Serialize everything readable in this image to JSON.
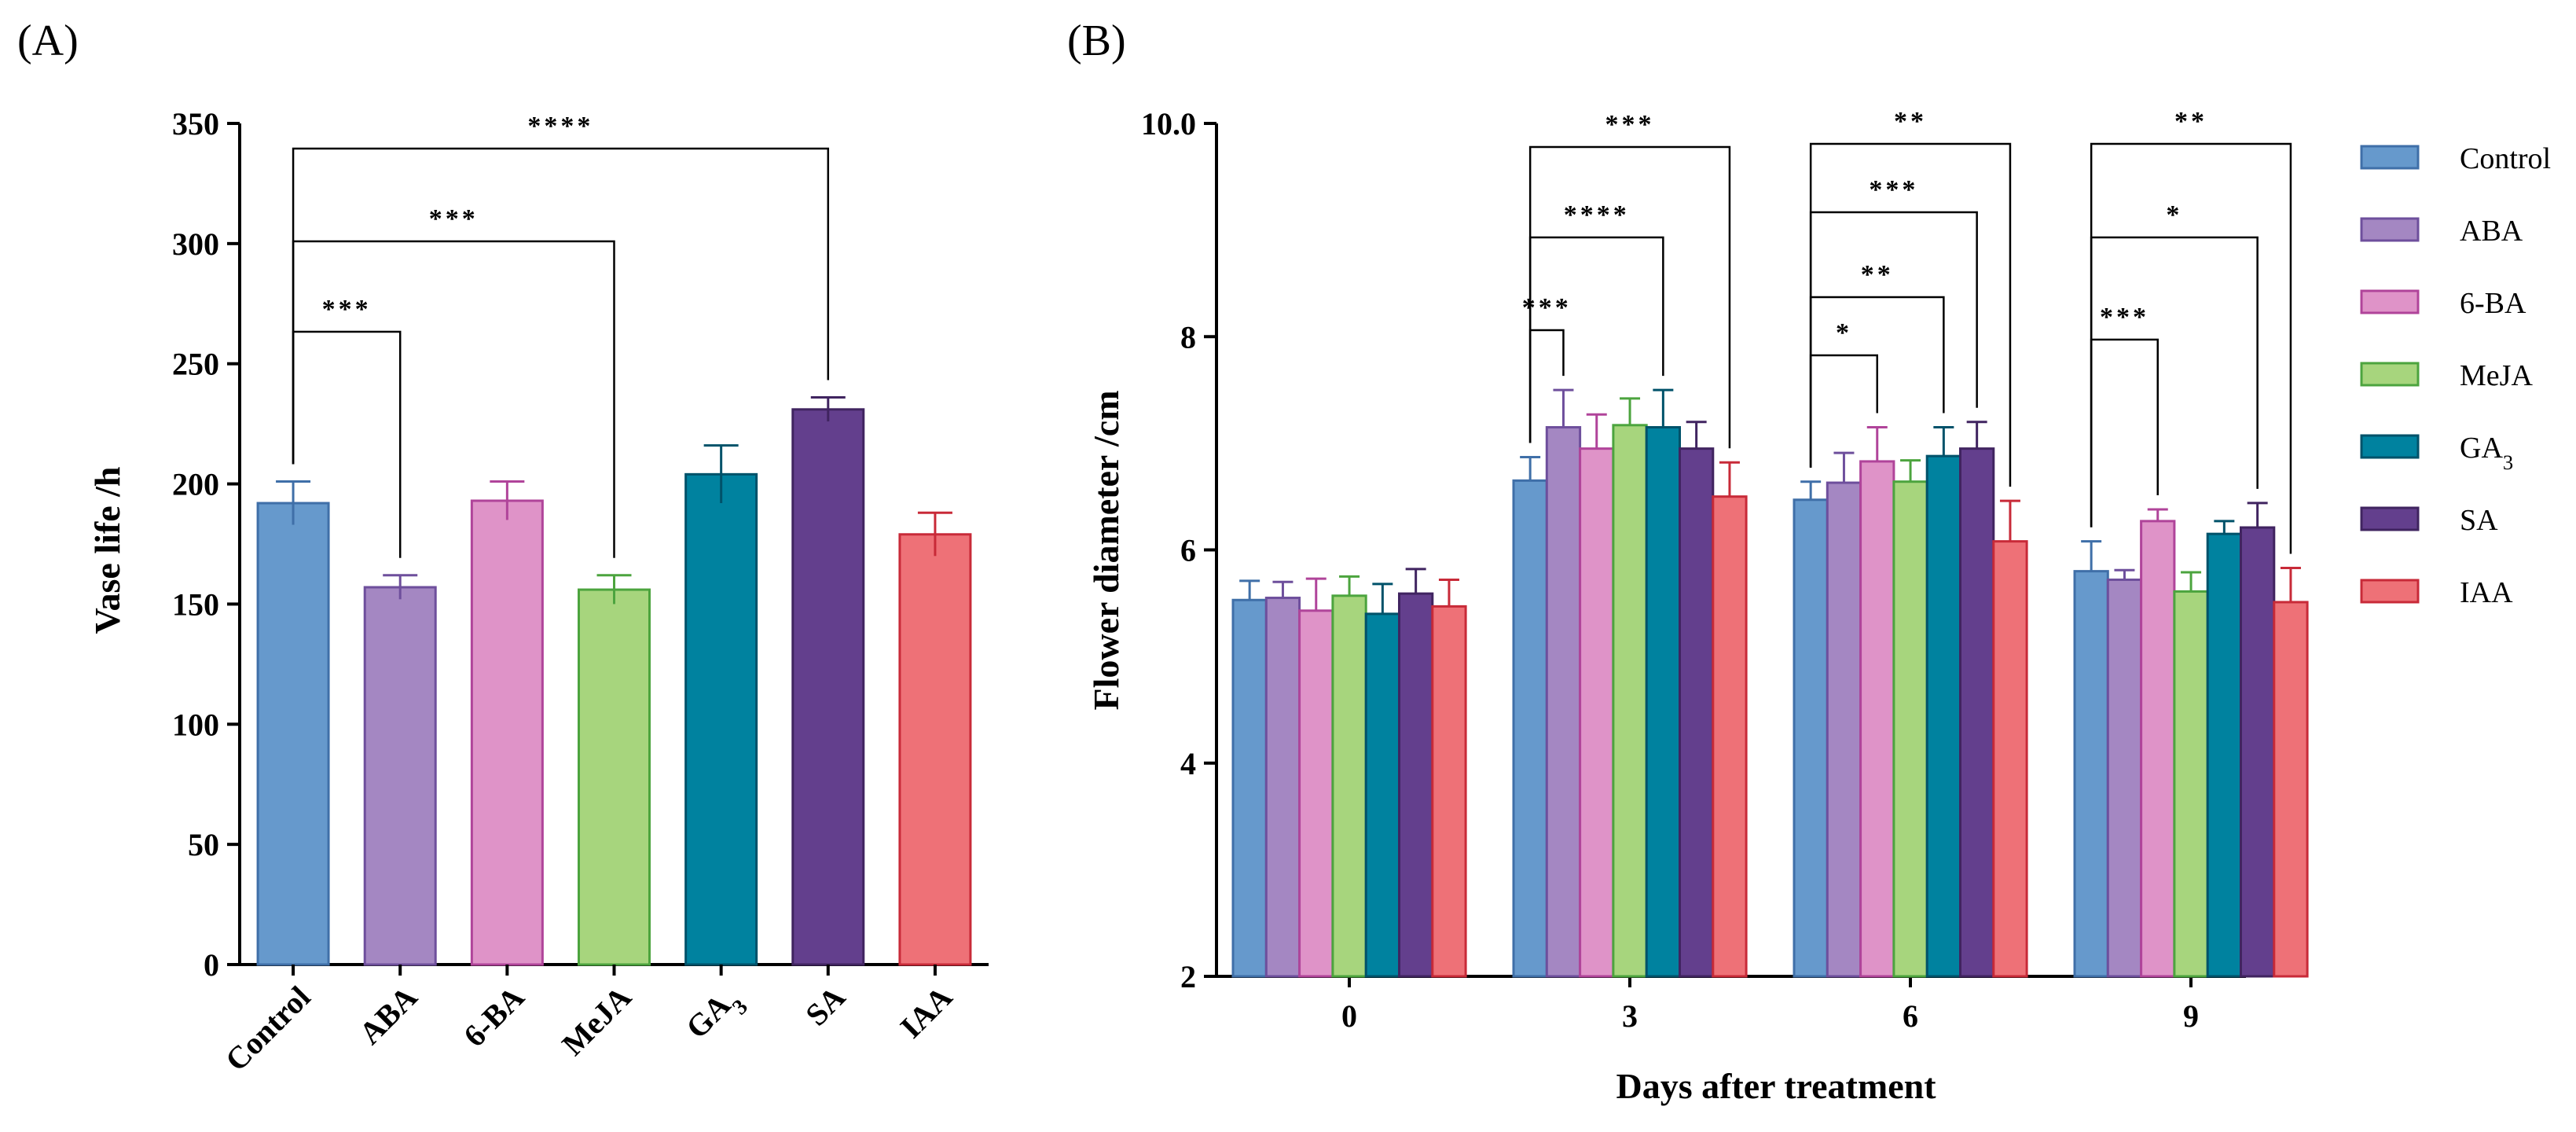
{
  "chart_data": [
    {
      "panel_label": "(A)",
      "type": "bar",
      "title": "",
      "xlabel": "",
      "ylabel": "Vase life /h",
      "ylim": [
        0,
        350
      ],
      "yticks": [
        "0",
        "50",
        "100",
        "150",
        "200",
        "250",
        "300",
        "350"
      ],
      "categories": [
        {
          "label": "Control",
          "base": "Control",
          "sub": ""
        },
        {
          "label": "ABA",
          "base": "ABA",
          "sub": ""
        },
        {
          "label": "6-BA",
          "base": "6-BA",
          "sub": ""
        },
        {
          "label": "MeJA",
          "base": "MeJA",
          "sub": ""
        },
        {
          "label": "GA3",
          "base": "GA",
          "sub": "3"
        },
        {
          "label": "SA",
          "base": "SA",
          "sub": ""
        },
        {
          "label": "IAA",
          "base": "IAA",
          "sub": ""
        }
      ],
      "values": [
        192,
        157,
        193,
        156,
        204,
        231,
        179
      ],
      "errors": [
        9,
        5,
        8,
        6,
        12,
        5,
        9
      ],
      "significance": [
        {
          "from": "Control",
          "to": "ABA",
          "label": "***"
        },
        {
          "from": "Control",
          "to": "MeJA",
          "label": "***"
        },
        {
          "from": "Control",
          "to": "SA",
          "label": "****"
        }
      ]
    },
    {
      "panel_label": "(B)",
      "type": "bar",
      "title": "",
      "xlabel": "Days after treatment",
      "ylabel": "Flower diameter /cm",
      "ylim": [
        2,
        10
      ],
      "yticks": [
        "2",
        "4",
        "6",
        "8",
        "10.0"
      ],
      "categories": [
        "0",
        "3",
        "6",
        "9"
      ],
      "series": [
        {
          "name": "Control",
          "base": "Control",
          "sub": "",
          "values": [
            5.53,
            6.65,
            6.47,
            5.8
          ],
          "errors": [
            0.18,
            0.22,
            0.17,
            0.28
          ]
        },
        {
          "name": "ABA",
          "base": "ABA",
          "sub": "",
          "values": [
            5.55,
            7.15,
            6.63,
            5.72
          ],
          "errors": [
            0.15,
            0.35,
            0.28,
            0.09
          ]
        },
        {
          "name": "6-BA",
          "base": "6-BA",
          "sub": "",
          "values": [
            5.43,
            6.95,
            6.83,
            6.27
          ],
          "errors": [
            0.3,
            0.32,
            0.32,
            0.11
          ]
        },
        {
          "name": "MeJA",
          "base": "MeJA",
          "sub": "",
          "values": [
            5.57,
            7.17,
            6.64,
            5.61
          ],
          "errors": [
            0.18,
            0.25,
            0.2,
            0.18
          ]
        },
        {
          "name": "GA3",
          "base": "GA",
          "sub": "3",
          "values": [
            5.4,
            7.15,
            6.88,
            6.15
          ],
          "errors": [
            0.28,
            0.35,
            0.27,
            0.12
          ]
        },
        {
          "name": "SA",
          "base": "SA",
          "sub": "",
          "values": [
            5.59,
            6.95,
            6.95,
            6.21
          ],
          "errors": [
            0.23,
            0.25,
            0.25,
            0.23
          ]
        },
        {
          "name": "IAA",
          "base": "IAA",
          "sub": "",
          "values": [
            5.47,
            6.5,
            6.08,
            5.51
          ],
          "errors": [
            0.25,
            0.32,
            0.38,
            0.32
          ]
        }
      ],
      "legend_position": "right",
      "significance": [
        {
          "day": "3",
          "from": "Control",
          "to": "ABA",
          "label": "***"
        },
        {
          "day": "3",
          "from": "Control",
          "to": "GA3",
          "label": "****"
        },
        {
          "day": "3",
          "from": "Control",
          "to": "IAA",
          "label": "***"
        },
        {
          "day": "6",
          "from": "Control",
          "to": "6-BA",
          "label": "*"
        },
        {
          "day": "6",
          "from": "Control",
          "to": "GA3",
          "label": "**"
        },
        {
          "day": "6",
          "from": "Control",
          "to": "SA",
          "label": "***"
        },
        {
          "day": "6",
          "from": "Control",
          "to": "IAA",
          "label": "**"
        },
        {
          "day": "9",
          "from": "Control",
          "to": "6-BA",
          "label": "***"
        },
        {
          "day": "9",
          "from": "Control",
          "to": "SA",
          "label": "*"
        },
        {
          "day": "9",
          "from": "Control",
          "to": "IAA",
          "label": "**"
        }
      ]
    }
  ],
  "colors": {
    "Control": {
      "fill": "#6699cc",
      "stroke": "#3f6fa8"
    },
    "ABA": {
      "fill": "#a487c2",
      "stroke": "#6e4f9c"
    },
    "6-BA": {
      "fill": "#df93c8",
      "stroke": "#b0449a"
    },
    "MeJA": {
      "fill": "#a7d57d",
      "stroke": "#4ca43e"
    },
    "GA3": {
      "fill": "#00829f",
      "stroke": "#00526a"
    },
    "SA": {
      "fill": "#633f8d",
      "stroke": "#402460"
    },
    "IAA": {
      "fill": "#ee7177",
      "stroke": "#c82a38"
    }
  }
}
